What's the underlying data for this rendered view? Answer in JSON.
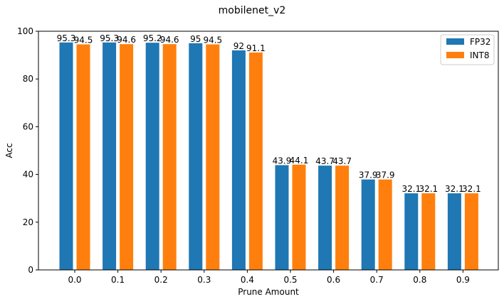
{
  "chart_data": {
    "type": "bar",
    "title": "mobilenet_v2",
    "xlabel": "Prune Amount",
    "ylabel": "Acc",
    "categories": [
      "0.0",
      "0.1",
      "0.2",
      "0.3",
      "0.4",
      "0.5",
      "0.6",
      "0.7",
      "0.8",
      "0.9"
    ],
    "series": [
      {
        "name": "FP32",
        "color": "#1f77b4",
        "values": [
          95.3,
          95.3,
          95.2,
          95,
          92,
          43.9,
          43.7,
          37.9,
          32.1,
          32.1
        ]
      },
      {
        "name": "INT8",
        "color": "#ff7f0e",
        "values": [
          94.5,
          94.6,
          94.6,
          94.5,
          91.1,
          44.1,
          43.7,
          37.9,
          32.1,
          32.1
        ]
      }
    ],
    "ylim": [
      0,
      100
    ],
    "yticks": [
      0,
      20,
      40,
      60,
      80,
      100
    ],
    "grid": false,
    "legend_position": "top-right"
  }
}
